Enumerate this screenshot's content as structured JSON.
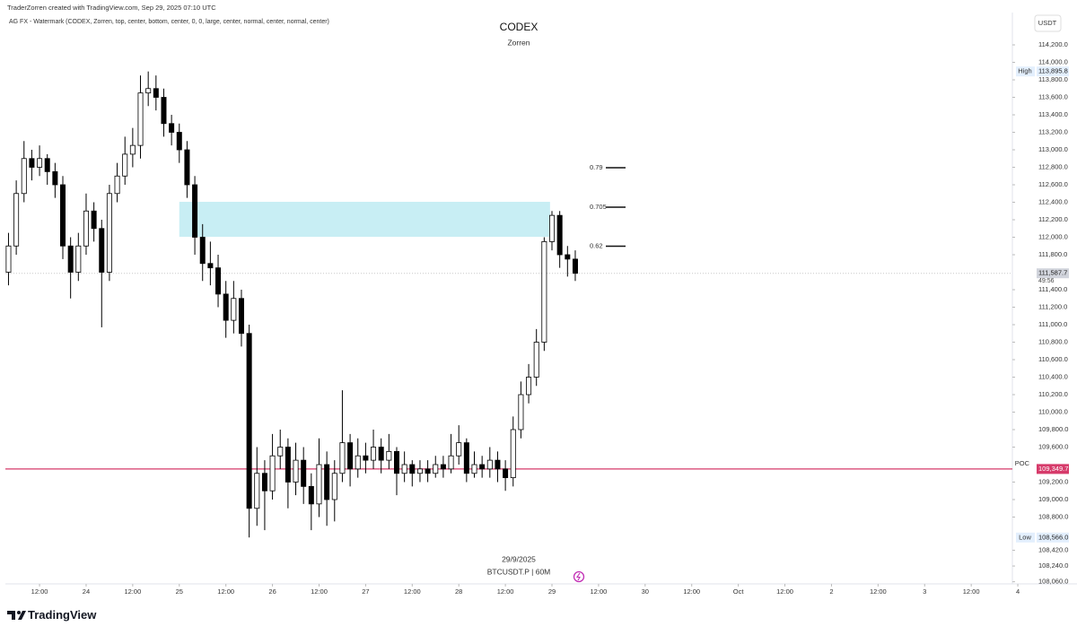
{
  "header": {
    "credit": "TraderZorren created with TradingView.com, Sep 29, 2025 07:10 UTC",
    "indicator": "AG FX - Watermark (CODEX, Zorren, top, center, bottom, center, 0, 0, large, center, normal, center, normal, center)"
  },
  "chart_data": {
    "type": "candlestick",
    "title": "CODEX",
    "subtitle": "Zorren",
    "date_label": "29/9/2025",
    "symbol": "BTCUSDT.P | 60M",
    "currency": "USDT",
    "up_color": "#ffffff",
    "down_color": "#000000",
    "wick_color": "#000000",
    "x": [
      -20,
      -18,
      -16,
      -14,
      -12,
      -10,
      -8,
      -6,
      -4,
      -2,
      0,
      2,
      4,
      6,
      8,
      10,
      12,
      14,
      16,
      18,
      20,
      22,
      24,
      26,
      28,
      30,
      32,
      34,
      36,
      38,
      40,
      42,
      44,
      46,
      48,
      50,
      52,
      54,
      56,
      58,
      60,
      62,
      64,
      66,
      68,
      70,
      72,
      74,
      76,
      78,
      80,
      82,
      84,
      86,
      88,
      90,
      92,
      94,
      96,
      98,
      100,
      102,
      104,
      106,
      108,
      110,
      112,
      114,
      116,
      118,
      120,
      122,
      124,
      126
    ],
    "open": [
      111600,
      111900,
      112500,
      112900,
      112800,
      112900,
      112750,
      112600,
      111900,
      111600,
      111900,
      112300,
      112100,
      111600,
      112500,
      112700,
      112950,
      113050,
      113650,
      113700,
      113600,
      113300,
      113200,
      113000,
      112600,
      112000,
      111700,
      111650,
      111350,
      111050,
      111300,
      110900,
      108900,
      109300,
      109100,
      109500,
      109600,
      109200,
      109450,
      109150,
      108950,
      109400,
      109000,
      109300,
      109650,
      109350,
      109500,
      109450,
      109600,
      109450,
      109550,
      109300,
      109400,
      109300,
      109350,
      109300,
      109400,
      109350,
      109500,
      109650,
      109300,
      109400,
      109350,
      109450,
      109350,
      109250,
      109800,
      110200,
      110400,
      110800,
      111950,
      112250,
      111800,
      111750
    ],
    "high": [
      112050,
      112650,
      113100,
      113000,
      113050,
      112950,
      112850,
      112700,
      112000,
      112050,
      112500,
      112400,
      112200,
      112600,
      112850,
      113150,
      113250,
      113850,
      113895.8,
      113850,
      113700,
      113400,
      113300,
      113100,
      112700,
      112150,
      111950,
      111800,
      111500,
      111500,
      111400,
      111000,
      109600,
      109450,
      109750,
      109800,
      109700,
      109650,
      109600,
      109300,
      109700,
      109550,
      109450,
      110250,
      109750,
      109700,
      109650,
      109800,
      109700,
      109750,
      109600,
      109550,
      109450,
      109450,
      109450,
      109500,
      109500,
      109750,
      109850,
      109700,
      109550,
      109500,
      109600,
      109550,
      109450,
      109950,
      110350,
      110550,
      110950,
      112000,
      112300,
      112300,
      111900,
      111850
    ],
    "low": [
      111450,
      111800,
      112400,
      112650,
      112700,
      112600,
      112450,
      111750,
      111300,
      111500,
      111800,
      111950,
      110970,
      111500,
      112400,
      112600,
      112800,
      112900,
      113500,
      113450,
      113150,
      113050,
      112850,
      112450,
      111800,
      111500,
      111450,
      111200,
      110850,
      110900,
      110750,
      108566,
      108700,
      108650,
      109000,
      109350,
      108900,
      109050,
      108950,
      108650,
      108800,
      108700,
      108750,
      109200,
      109150,
      109250,
      109300,
      109350,
      109300,
      109350,
      109050,
      109200,
      109150,
      109200,
      109200,
      109250,
      109250,
      109300,
      109400,
      109200,
      109250,
      109250,
      109250,
      109200,
      109100,
      109150,
      109700,
      110100,
      110300,
      110700,
      111850,
      111650,
      111550,
      111500
    ],
    "close": [
      111900,
      112500,
      112900,
      112800,
      112900,
      112750,
      112600,
      111900,
      111600,
      111900,
      112300,
      112100,
      111600,
      112500,
      112700,
      112950,
      113050,
      113650,
      113700,
      113600,
      113300,
      113200,
      113000,
      112600,
      112000,
      111700,
      111650,
      111350,
      111050,
      111300,
      110900,
      108900,
      109300,
      109100,
      109500,
      109600,
      109200,
      109450,
      109150,
      108950,
      109400,
      109000,
      109300,
      109650,
      109350,
      109500,
      109450,
      109600,
      109450,
      109550,
      109300,
      109400,
      109300,
      109350,
      109300,
      109400,
      109350,
      109500,
      109650,
      109300,
      109400,
      109350,
      109450,
      109350,
      109250,
      109800,
      110200,
      110400,
      110800,
      111950,
      112250,
      111800,
      111750,
      111587.7
    ],
    "xlim": [
      -20.8,
      238.6
    ],
    "xticks": [
      {
        "value": -12,
        "label": "12:00"
      },
      {
        "value": 0,
        "label": "24"
      },
      {
        "value": 12,
        "label": "12:00"
      },
      {
        "value": 24,
        "label": "25"
      },
      {
        "value": 36,
        "label": "12:00"
      },
      {
        "value": 48,
        "label": "26"
      },
      {
        "value": 60,
        "label": "12:00"
      },
      {
        "value": 72,
        "label": "27"
      },
      {
        "value": 84,
        "label": "12:00"
      },
      {
        "value": 96,
        "label": "28"
      },
      {
        "value": 108,
        "label": "12:00"
      },
      {
        "value": 120,
        "label": "29"
      },
      {
        "value": 132,
        "label": "12:00"
      },
      {
        "value": 144,
        "label": "30"
      },
      {
        "value": 156,
        "label": "12:00"
      },
      {
        "value": 168,
        "label": "Oct"
      },
      {
        "value": 180,
        "label": "12:00"
      },
      {
        "value": 192,
        "label": "2"
      },
      {
        "value": 204,
        "label": "12:00"
      },
      {
        "value": 216,
        "label": "3"
      },
      {
        "value": 228,
        "label": "12:00"
      },
      {
        "value": 240,
        "label": "4"
      }
    ],
    "ylim": [
      108046,
      114549
    ],
    "yticks": [
      {
        "value": 114200,
        "label": "114,200.0"
      },
      {
        "value": 114000,
        "label": "114,000.0"
      },
      {
        "value": 113800,
        "label": "113,800.0"
      },
      {
        "value": 113600,
        "label": "113,600.0"
      },
      {
        "value": 113400,
        "label": "113,400.0"
      },
      {
        "value": 113200,
        "label": "113,200.0"
      },
      {
        "value": 113000,
        "label": "113,000.0"
      },
      {
        "value": 112800,
        "label": "112,800.0"
      },
      {
        "value": 112600,
        "label": "112,600.0"
      },
      {
        "value": 112400,
        "label": "112,400.0"
      },
      {
        "value": 112200,
        "label": "112,200.0"
      },
      {
        "value": 112000,
        "label": "112,000.0"
      },
      {
        "value": 111800,
        "label": "111,800.0"
      },
      {
        "value": 111400,
        "label": "111,400.0"
      },
      {
        "value": 111200,
        "label": "111,200.0"
      },
      {
        "value": 111000,
        "label": "111,000.0"
      },
      {
        "value": 110800,
        "label": "110,800.0"
      },
      {
        "value": 110600,
        "label": "110,600.0"
      },
      {
        "value": 110400,
        "label": "110,400.0"
      },
      {
        "value": 110200,
        "label": "110,200.0"
      },
      {
        "value": 110000,
        "label": "110,000.0"
      },
      {
        "value": 109800,
        "label": "109,800.0"
      },
      {
        "value": 109600,
        "label": "109,600.0"
      },
      {
        "value": 109200,
        "label": "109,200.0"
      },
      {
        "value": 109000,
        "label": "109,000.0"
      },
      {
        "value": 108800,
        "label": "108,800.0"
      },
      {
        "value": 108420,
        "label": "108,420.0"
      },
      {
        "value": 108240,
        "label": "108,240.0"
      },
      {
        "value": 108060,
        "label": "108,060.0"
      }
    ],
    "zone": {
      "x": [
        24,
        119.5
      ],
      "y": [
        112005,
        112405
      ],
      "color": "#c8eef4"
    },
    "levels": [
      {
        "label": "0.79",
        "value": 112795
      },
      {
        "label": "0.705",
        "value": 112344
      },
      {
        "label": "0.62",
        "value": 111897
      }
    ],
    "poc": {
      "name": "POC",
      "value": 109349.7,
      "label": "109,349.7",
      "color": "#d63a6a"
    },
    "last": {
      "value": 111587.7,
      "label": "111,587.7",
      "countdown": "49:56"
    },
    "high_mark": {
      "name": "High",
      "value": 113895.8,
      "label": "113,895.8"
    },
    "low_mark": {
      "name": "Low",
      "value": 108566.0,
      "label": "108,566.0"
    }
  },
  "footer": {
    "brand": "TradingView"
  }
}
